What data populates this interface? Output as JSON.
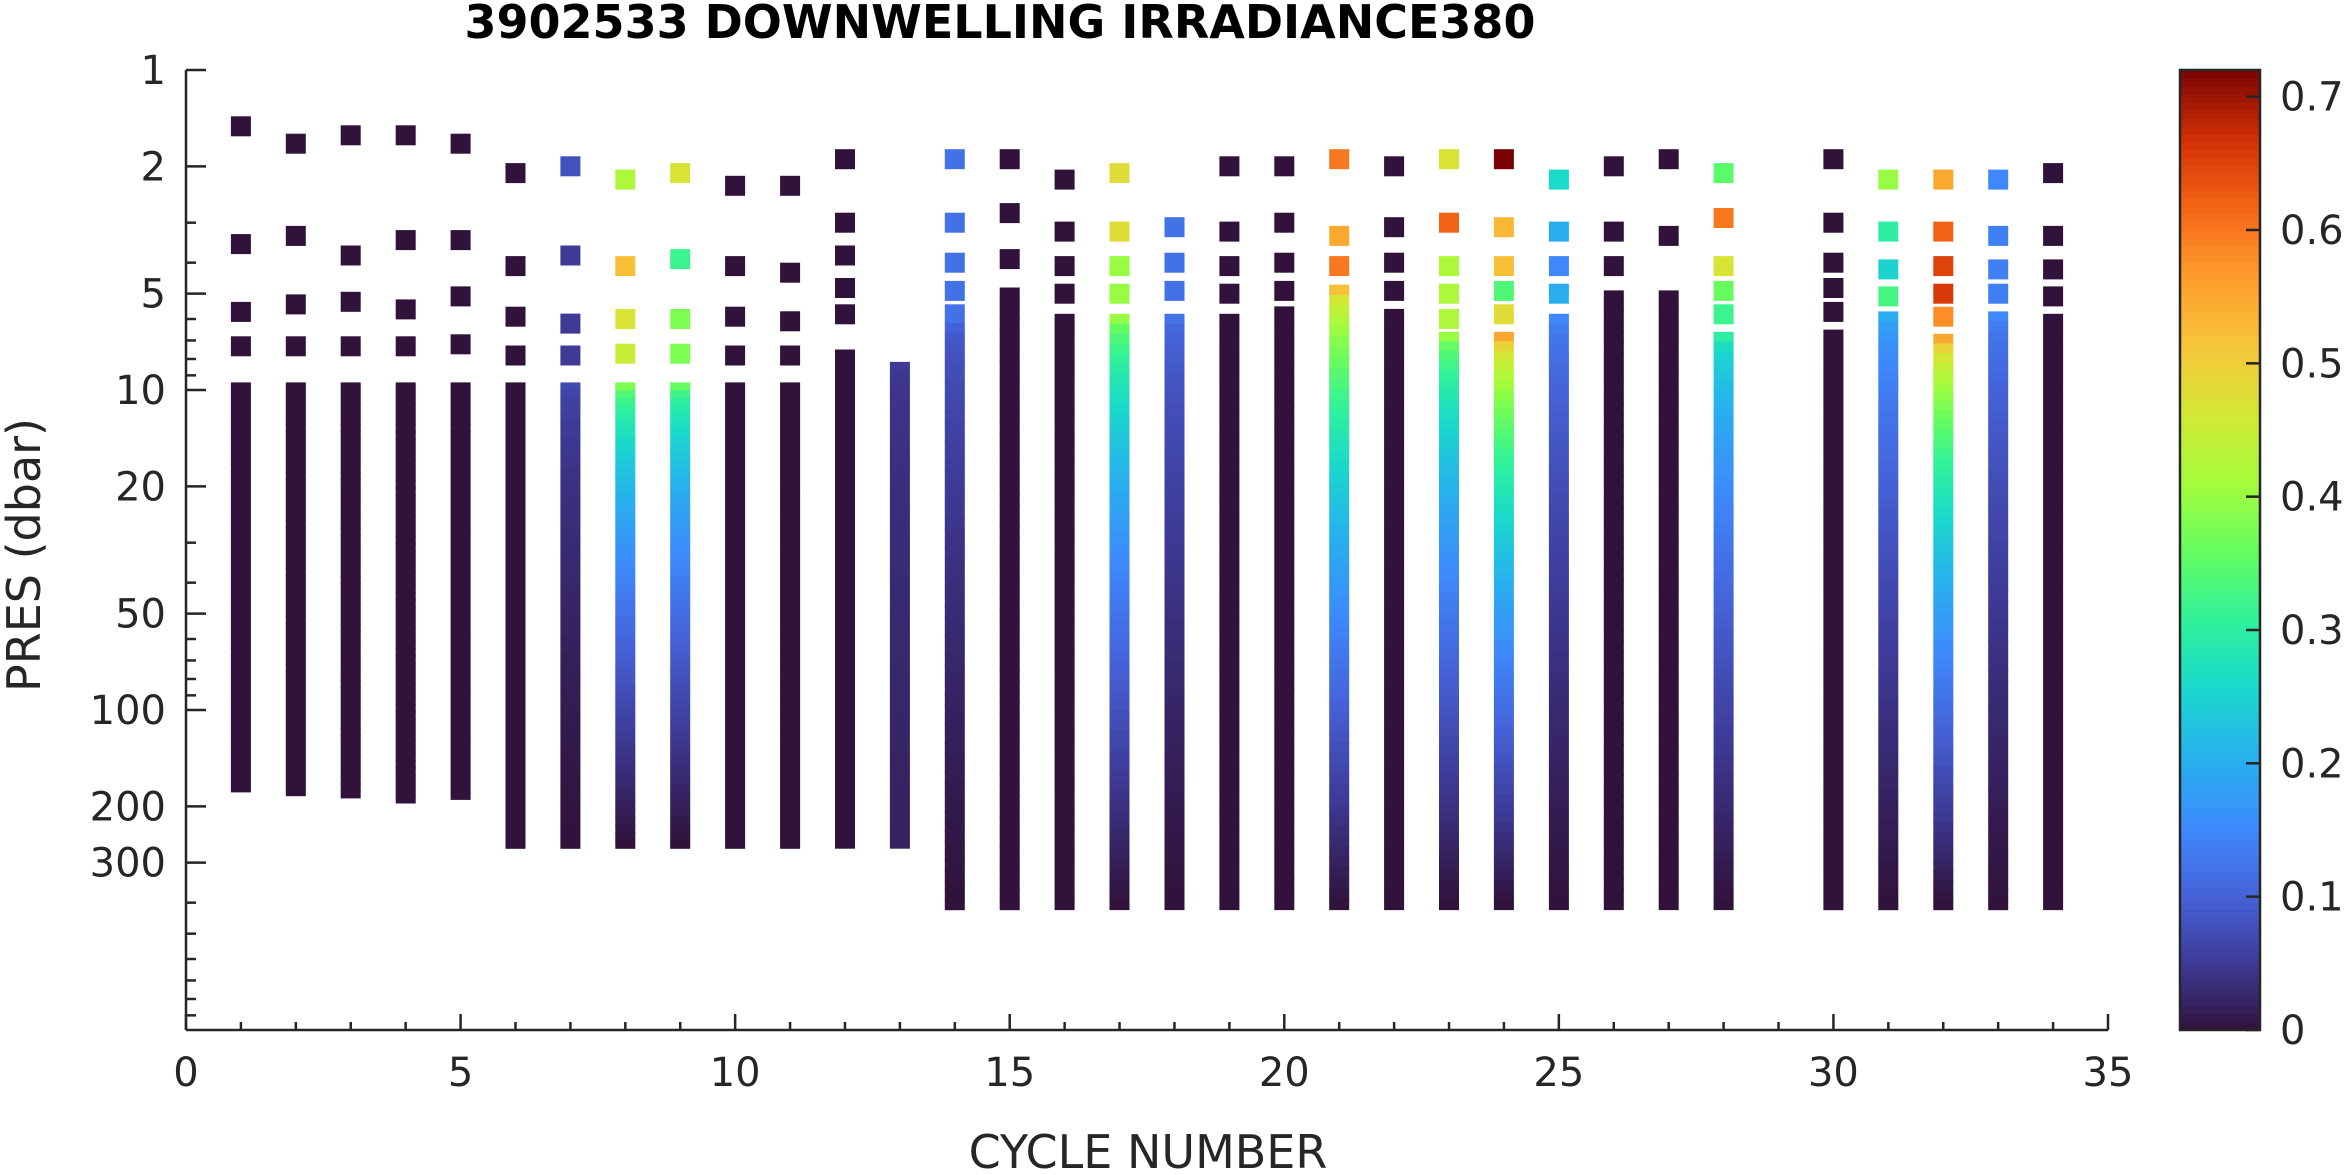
{
  "chart_data": {
    "type": "scatter",
    "title": "3902533  DOWNWELLING IRRADIANCE380",
    "xlabel": "CYCLE NUMBER",
    "ylabel": "PRES (dbar)",
    "xlim": [
      0,
      35
    ],
    "ylim": [
      1,
      1000
    ],
    "yscale": "log",
    "yreversed": true,
    "xticks": [
      0,
      5,
      10,
      15,
      20,
      25,
      30,
      35
    ],
    "yticks": [
      1,
      2,
      5,
      10,
      20,
      50,
      100,
      200,
      300
    ],
    "colorbar": {
      "min": 0,
      "max": 0.72,
      "ticks": [
        0,
        0.1,
        0.2,
        0.3,
        0.4,
        0.5,
        0.6,
        0.7
      ],
      "tick_labels": [
        "0",
        "0.1",
        "0.2",
        "0.3",
        "0.4",
        "0.5",
        "0.6",
        "0.7"
      ],
      "colormap": "turbo"
    },
    "grid": false,
    "profiles": [
      {
        "cycle": 1,
        "shallow_points": [
          [
            1.5,
            0.0
          ],
          [
            3.5,
            0.0
          ],
          [
            5.7,
            0.0
          ],
          [
            7.3,
            0.0
          ]
        ],
        "column": {
          "top": 9.5,
          "bottom": 180,
          "value_top": 0.0,
          "value_bottom": 0.0
        }
      },
      {
        "cycle": 2,
        "shallow_points": [
          [
            1.7,
            0.0
          ],
          [
            3.3,
            0.0
          ],
          [
            5.4,
            0.0
          ],
          [
            7.3,
            0.0
          ]
        ],
        "column": {
          "top": 9.5,
          "bottom": 185,
          "value_top": 0.0,
          "value_bottom": 0.0
        }
      },
      {
        "cycle": 3,
        "shallow_points": [
          [
            1.6,
            0.0
          ],
          [
            3.8,
            0.0
          ],
          [
            5.3,
            0.0
          ],
          [
            7.3,
            0.0
          ]
        ],
        "column": {
          "top": 9.5,
          "bottom": 188,
          "value_top": 0.0,
          "value_bottom": 0.0
        }
      },
      {
        "cycle": 4,
        "shallow_points": [
          [
            1.6,
            0.0
          ],
          [
            3.4,
            0.0
          ],
          [
            5.6,
            0.0
          ],
          [
            7.3,
            0.0
          ]
        ],
        "column": {
          "top": 9.5,
          "bottom": 195,
          "value_top": 0.0,
          "value_bottom": 0.0
        }
      },
      {
        "cycle": 5,
        "shallow_points": [
          [
            1.7,
            0.0
          ],
          [
            3.4,
            0.0
          ],
          [
            5.1,
            0.0
          ],
          [
            7.2,
            0.0
          ]
        ],
        "column": {
          "top": 9.5,
          "bottom": 190,
          "value_top": 0.0,
          "value_bottom": 0.0
        }
      },
      {
        "cycle": 6,
        "shallow_points": [
          [
            2.1,
            0.0
          ],
          [
            4.1,
            0.0
          ],
          [
            5.9,
            0.0
          ],
          [
            7.8,
            0.0
          ]
        ],
        "column": {
          "top": 9.5,
          "bottom": 270,
          "value_top": 0.0,
          "value_bottom": 0.0
        }
      },
      {
        "cycle": 7,
        "shallow_points": [
          [
            2.0,
            0.08
          ],
          [
            3.8,
            0.05
          ],
          [
            6.2,
            0.05
          ],
          [
            7.8,
            0.05
          ]
        ],
        "column": {
          "top": 9.5,
          "bottom": 270,
          "value_top": 0.07,
          "value_bottom": 0.0
        }
      },
      {
        "cycle": 8,
        "shallow_points": [
          [
            2.2,
            0.42
          ],
          [
            4.1,
            0.52
          ],
          [
            6.0,
            0.47
          ],
          [
            7.7,
            0.45
          ]
        ],
        "column": {
          "top": 9.5,
          "bottom": 270,
          "value_top": 0.38,
          "value_bottom": 0.0
        }
      },
      {
        "cycle": 9,
        "shallow_points": [
          [
            2.1,
            0.47
          ],
          [
            3.9,
            0.32
          ],
          [
            6.0,
            0.38
          ],
          [
            7.7,
            0.38
          ]
        ],
        "column": {
          "top": 9.5,
          "bottom": 270,
          "value_top": 0.36,
          "value_bottom": 0.0
        }
      },
      {
        "cycle": 10,
        "shallow_points": [
          [
            2.3,
            0.0
          ],
          [
            4.1,
            0.0
          ],
          [
            5.9,
            0.0
          ],
          [
            7.8,
            0.0
          ]
        ],
        "column": {
          "top": 9.5,
          "bottom": 270,
          "value_top": 0.0,
          "value_bottom": 0.0
        }
      },
      {
        "cycle": 11,
        "shallow_points": [
          [
            2.3,
            0.0
          ],
          [
            4.3,
            0.0
          ],
          [
            6.1,
            0.0
          ],
          [
            7.8,
            0.0
          ]
        ],
        "column": {
          "top": 9.5,
          "bottom": 270,
          "value_top": 0.0,
          "value_bottom": 0.0
        }
      },
      {
        "cycle": 12,
        "shallow_points": [
          [
            1.9,
            0.0
          ],
          [
            3.0,
            0.0
          ],
          [
            3.8,
            0.0
          ],
          [
            4.8,
            0.0
          ],
          [
            5.8,
            0.0
          ]
        ],
        "column": {
          "top": 7.5,
          "bottom": 270,
          "value_top": 0.0,
          "value_bottom": 0.0
        }
      },
      {
        "cycle": 13,
        "shallow_points": [],
        "column": {
          "top": 8.2,
          "bottom": 270,
          "value_top": 0.05,
          "value_bottom": 0.02
        }
      },
      {
        "cycle": 14,
        "shallow_points": [
          [
            1.9,
            0.12
          ],
          [
            3.0,
            0.12
          ],
          [
            4.0,
            0.12
          ],
          [
            4.9,
            0.12
          ],
          [
            5.8,
            0.12
          ]
        ],
        "column": {
          "top": 6.2,
          "bottom": 420,
          "value_top": 0.1,
          "value_bottom": 0.0
        }
      },
      {
        "cycle": 15,
        "shallow_points": [
          [
            1.9,
            0.0
          ],
          [
            2.8,
            0.0
          ],
          [
            3.9,
            0.0
          ]
        ],
        "column": {
          "top": 4.8,
          "bottom": 420,
          "value_top": 0.0,
          "value_bottom": 0.0
        }
      },
      {
        "cycle": 16,
        "shallow_points": [
          [
            2.2,
            0.0
          ],
          [
            3.2,
            0.0
          ],
          [
            4.1,
            0.0
          ],
          [
            5.0,
            0.0
          ]
        ],
        "column": {
          "top": 5.8,
          "bottom": 420,
          "value_top": 0.0,
          "value_bottom": 0.0
        }
      },
      {
        "cycle": 17,
        "shallow_points": [
          [
            2.1,
            0.48
          ],
          [
            3.2,
            0.48
          ],
          [
            4.1,
            0.4
          ],
          [
            5.0,
            0.4
          ]
        ],
        "column": {
          "top": 5.8,
          "bottom": 420,
          "value_top": 0.4,
          "value_bottom": 0.0
        }
      },
      {
        "cycle": 18,
        "shallow_points": [
          [
            3.1,
            0.12
          ],
          [
            4.0,
            0.12
          ],
          [
            4.9,
            0.12
          ]
        ],
        "column": {
          "top": 5.8,
          "bottom": 420,
          "value_top": 0.12,
          "value_bottom": 0.0
        }
      },
      {
        "cycle": 19,
        "shallow_points": [
          [
            2.0,
            0.0
          ],
          [
            3.2,
            0.0
          ],
          [
            4.1,
            0.0
          ],
          [
            5.0,
            0.0
          ]
        ],
        "column": {
          "top": 5.8,
          "bottom": 420,
          "value_top": 0.0,
          "value_bottom": 0.0
        }
      },
      {
        "cycle": 20,
        "shallow_points": [
          [
            2.0,
            0.0
          ],
          [
            3.0,
            0.0
          ],
          [
            4.0,
            0.0
          ],
          [
            4.9,
            0.0
          ]
        ],
        "column": {
          "top": 5.5,
          "bottom": 420,
          "value_top": 0.0,
          "value_bottom": 0.0
        }
      },
      {
        "cycle": 21,
        "shallow_points": [
          [
            1.9,
            0.6
          ],
          [
            3.3,
            0.55
          ],
          [
            4.1,
            0.6
          ]
        ],
        "column": {
          "top": 4.7,
          "bottom": 420,
          "value_top": 0.52,
          "value_bottom": 0.0
        }
      },
      {
        "cycle": 22,
        "shallow_points": [
          [
            2.0,
            0.0
          ],
          [
            3.1,
            0.0
          ],
          [
            4.0,
            0.0
          ],
          [
            4.9,
            0.0
          ]
        ],
        "column": {
          "top": 5.6,
          "bottom": 420,
          "value_top": 0.0,
          "value_bottom": 0.0
        }
      },
      {
        "cycle": 23,
        "shallow_points": [
          [
            1.9,
            0.47
          ],
          [
            3.0,
            0.62
          ],
          [
            4.1,
            0.42
          ],
          [
            5.0,
            0.42
          ],
          [
            6.0,
            0.42
          ]
        ],
        "column": {
          "top": 6.6,
          "bottom": 420,
          "value_top": 0.4,
          "value_bottom": 0.0
        }
      },
      {
        "cycle": 24,
        "shallow_points": [
          [
            1.9,
            0.72
          ],
          [
            3.1,
            0.53
          ],
          [
            4.1,
            0.52
          ],
          [
            4.9,
            0.34
          ],
          [
            5.8,
            0.48
          ]
        ],
        "column": {
          "top": 6.6,
          "bottom": 420,
          "value_top": 0.55,
          "value_bottom": 0.0
        }
      },
      {
        "cycle": 25,
        "shallow_points": [
          [
            2.2,
            0.26
          ],
          [
            3.2,
            0.2
          ],
          [
            4.1,
            0.15
          ],
          [
            5.0,
            0.2
          ]
        ],
        "column": {
          "top": 5.8,
          "bottom": 420,
          "value_top": 0.15,
          "value_bottom": 0.0
        }
      },
      {
        "cycle": 26,
        "shallow_points": [
          [
            2.0,
            0.0
          ],
          [
            3.2,
            0.0
          ],
          [
            4.1,
            0.0
          ]
        ],
        "column": {
          "top": 4.9,
          "bottom": 420,
          "value_top": 0.0,
          "value_bottom": 0.0
        }
      },
      {
        "cycle": 27,
        "shallow_points": [
          [
            1.9,
            0.0
          ],
          [
            3.3,
            0.0
          ]
        ],
        "column": {
          "top": 4.9,
          "bottom": 420,
          "value_top": 0.0,
          "value_bottom": 0.0
        }
      },
      {
        "cycle": 28,
        "shallow_points": [
          [
            2.1,
            0.35
          ],
          [
            2.9,
            0.6
          ],
          [
            4.1,
            0.47
          ],
          [
            4.9,
            0.36
          ],
          [
            5.8,
            0.32
          ]
        ],
        "column": {
          "top": 6.6,
          "bottom": 420,
          "value_top": 0.3,
          "value_bottom": 0.0
        }
      },
      {
        "cycle": 30,
        "shallow_points": [
          [
            1.9,
            0.0
          ],
          [
            3.0,
            0.0
          ],
          [
            4.0,
            0.0
          ],
          [
            4.8,
            0.0
          ],
          [
            5.7,
            0.0
          ]
        ],
        "column": {
          "top": 6.5,
          "bottom": 420,
          "value_top": 0.0,
          "value_bottom": 0.0
        }
      },
      {
        "cycle": 31,
        "shallow_points": [
          [
            2.2,
            0.4
          ],
          [
            3.2,
            0.3
          ],
          [
            4.2,
            0.25
          ],
          [
            5.1,
            0.33
          ]
        ],
        "column": {
          "top": 5.7,
          "bottom": 420,
          "value_top": 0.2,
          "value_bottom": 0.0
        }
      },
      {
        "cycle": 32,
        "shallow_points": [
          [
            2.2,
            0.55
          ],
          [
            3.2,
            0.62
          ],
          [
            4.1,
            0.65
          ],
          [
            5.0,
            0.66
          ],
          [
            5.9,
            0.58
          ]
        ],
        "column": {
          "top": 6.7,
          "bottom": 420,
          "value_top": 0.55,
          "value_bottom": 0.0
        }
      },
      {
        "cycle": 33,
        "shallow_points": [
          [
            2.2,
            0.15
          ],
          [
            3.3,
            0.14
          ],
          [
            4.2,
            0.14
          ],
          [
            5.0,
            0.14
          ]
        ],
        "column": {
          "top": 5.7,
          "bottom": 420,
          "value_top": 0.15,
          "value_bottom": 0.0
        }
      },
      {
        "cycle": 34,
        "shallow_points": [
          [
            2.1,
            0.0
          ],
          [
            3.3,
            0.0
          ],
          [
            4.2,
            0.0
          ],
          [
            5.1,
            0.0
          ]
        ],
        "column": {
          "top": 5.8,
          "bottom": 420,
          "value_top": 0.0,
          "value_bottom": 0.0
        }
      }
    ]
  }
}
